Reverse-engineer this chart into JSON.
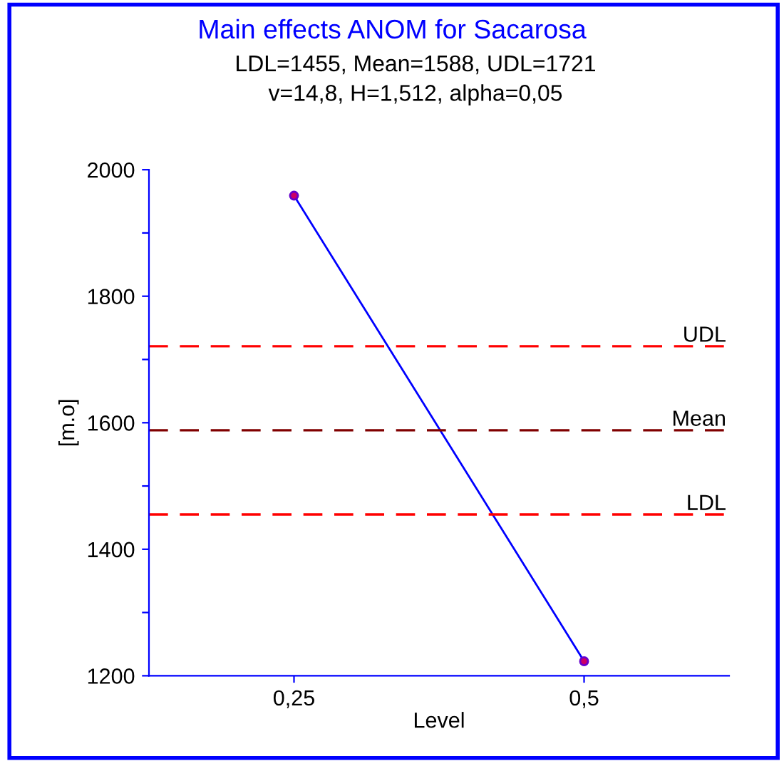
{
  "chart_data": {
    "type": "line",
    "title": "Main effects ANOM for Sacarosa",
    "subtitle": "LDL=1455, Mean=1588, UDL=1721\nv=14,8, H=1,512, alpha=0,05",
    "xlabel": "Level",
    "ylabel": "[m.o]",
    "categories": [
      "0,25",
      "0,5"
    ],
    "series": [
      {
        "color": "#0000ff",
        "values": [
          1959,
          1223
        ]
      }
    ],
    "marker": "circle",
    "line_style": "solid",
    "ylim": [
      1200,
      2000
    ],
    "yticks": [
      1200,
      {
        "value": 1300,
        "label": null
      },
      1400,
      {
        "value": 1500,
        "label": null
      },
      1600,
      {
        "value": 1700,
        "label": null
      },
      1800,
      {
        "value": 1900,
        "label": null
      },
      2000
    ],
    "ref_lines": [
      {
        "axis": "y",
        "value": 1721,
        "label": "UDL",
        "color": "#ff0000",
        "line_style": "dashed"
      },
      {
        "axis": "y",
        "value": 1588,
        "label": "Mean",
        "color": "#800000",
        "line_style": "dashed"
      },
      {
        "axis": "y",
        "value": 1455,
        "label": "LDL",
        "color": "#ff0000",
        "line_style": "dashed"
      }
    ]
  }
}
